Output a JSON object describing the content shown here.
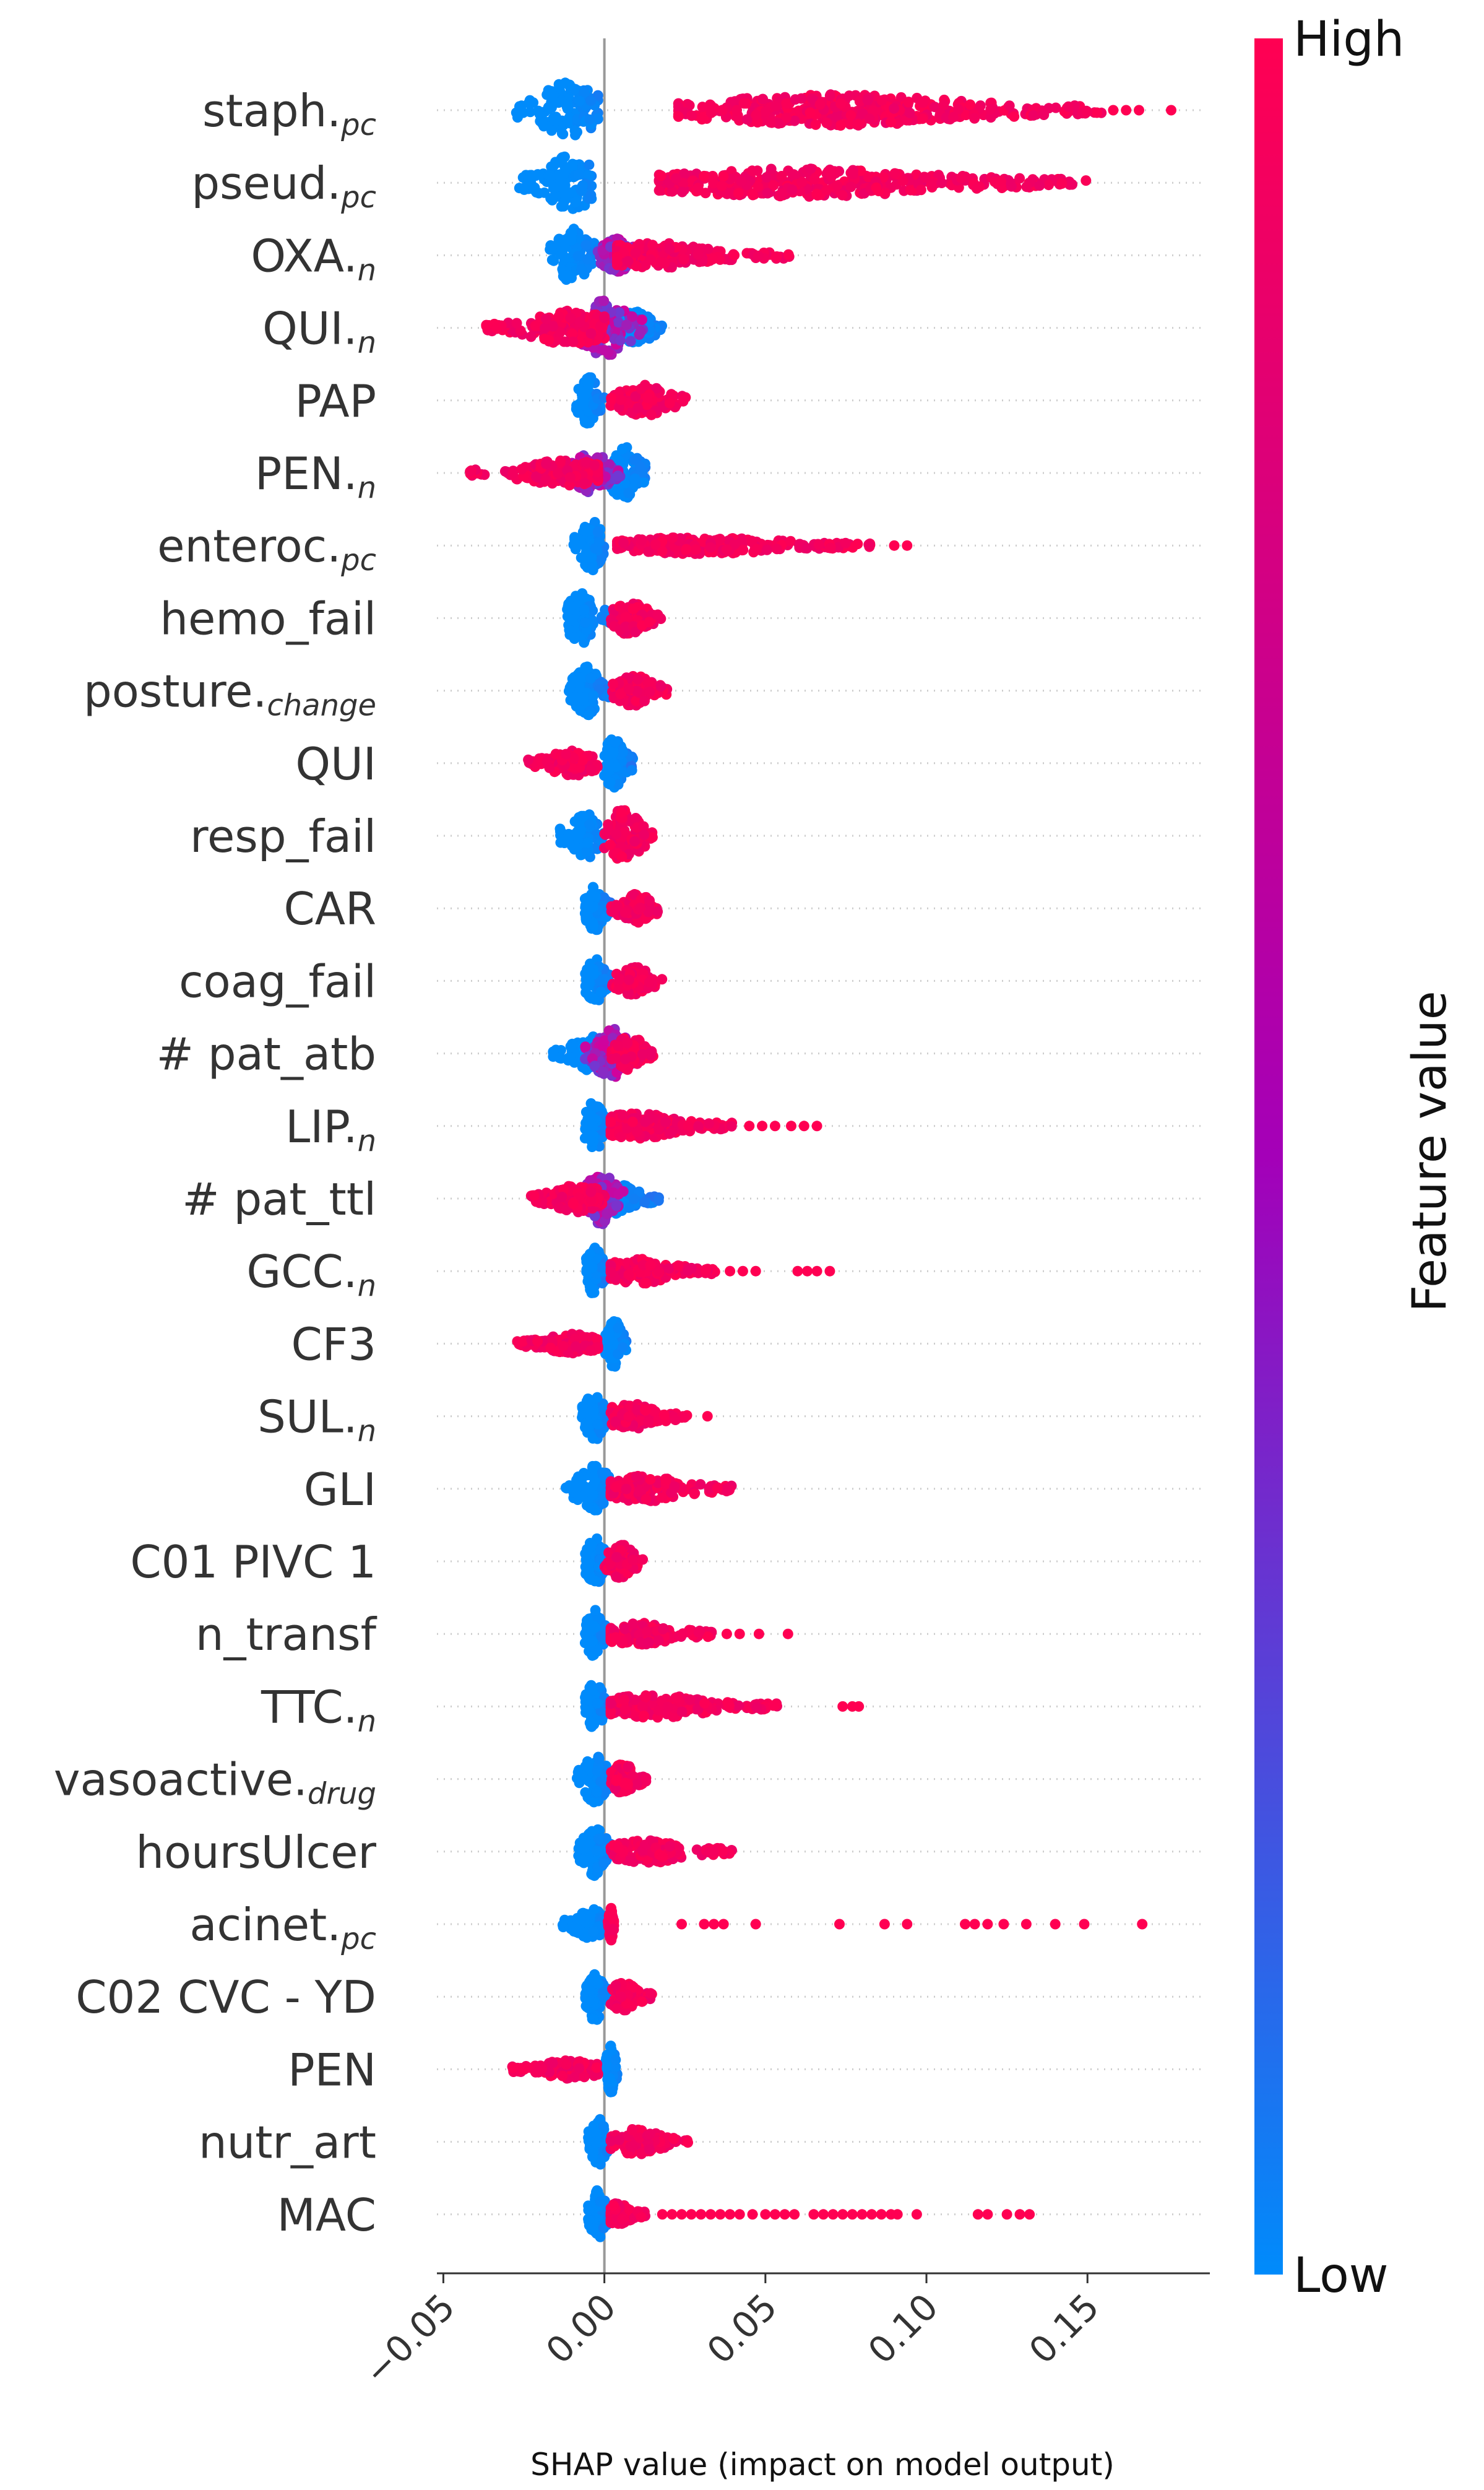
{
  "chart_data": {
    "type": "scatter",
    "subtype": "shap-beeswarm",
    "xlabel": "SHAP value (impact on model output)",
    "xlim": [
      -0.052,
      0.188
    ],
    "xticks": [
      -0.05,
      0.0,
      0.05,
      0.1,
      0.15
    ],
    "xtick_labels": [
      "−0.05",
      "0.00",
      "0.05",
      "0.10",
      "0.15"
    ],
    "colorbar": {
      "title": "Feature value",
      "high_label": "High",
      "low_label": "Low",
      "low_color": "#008bfb",
      "high_color": "#ff0052"
    },
    "features": [
      {
        "name": "staph.",
        "sub": "pc",
        "low": {
          "min": -0.028,
          "max": -0.002,
          "center": -0.011,
          "spread": 1.0
        },
        "high": {
          "min": 0.023,
          "max": 0.155,
          "center": 0.07,
          "spread": 0.55,
          "outliers": [
            0.158,
            0.162,
            0.166,
            0.176
          ]
        }
      },
      {
        "name": "pseud.",
        "sub": "pc",
        "low": {
          "min": -0.027,
          "max": -0.004,
          "center": -0.01,
          "spread": 1.0
        },
        "high": {
          "min": 0.017,
          "max": 0.15,
          "center": 0.06,
          "spread": 0.5
        }
      },
      {
        "name": "OXA.",
        "sub": "n",
        "low": {
          "min": -0.017,
          "max": 0.0,
          "center": -0.01,
          "spread": 0.95
        },
        "mid": {
          "min": -0.002,
          "max": 0.012,
          "center": 0.004,
          "spread": 0.6
        },
        "high": {
          "min": 0.004,
          "max": 0.058,
          "center": 0.015,
          "spread": 0.45
        }
      },
      {
        "name": "QUI.",
        "sub": "n",
        "high": {
          "min": -0.037,
          "max": 0.0,
          "center": -0.01,
          "spread": 0.6
        },
        "mid": {
          "min": -0.01,
          "max": 0.012,
          "center": 0.0,
          "spread": 1.0
        },
        "low": {
          "min": 0.004,
          "max": 0.018,
          "center": 0.01,
          "spread": 0.6
        }
      },
      {
        "name": "PAP",
        "sub": "",
        "low": {
          "min": -0.009,
          "max": 0.0,
          "center": -0.005,
          "spread": 0.85
        },
        "high": {
          "min": 0.002,
          "max": 0.026,
          "center": 0.012,
          "spread": 0.55
        }
      },
      {
        "name": "PEN.",
        "sub": "n",
        "high": {
          "min": -0.042,
          "max": -0.002,
          "center": -0.012,
          "spread": 0.45
        },
        "mid": {
          "min": -0.012,
          "max": 0.006,
          "center": -0.004,
          "spread": 0.7
        },
        "low": {
          "min": 0.0,
          "max": 0.013,
          "center": 0.006,
          "spread": 0.95
        }
      },
      {
        "name": "enteroc.",
        "sub": "pc",
        "low": {
          "min": -0.01,
          "max": 0.0,
          "center": -0.004,
          "spread": 0.9
        },
        "high": {
          "min": 0.004,
          "max": 0.083,
          "center": 0.03,
          "spread": 0.3,
          "outliers": [
            0.09,
            0.094
          ]
        }
      },
      {
        "name": "hemo_fail",
        "sub": "",
        "low": {
          "min": -0.012,
          "max": 0.002,
          "center": -0.007,
          "spread": 0.9
        },
        "high": {
          "min": 0.002,
          "max": 0.018,
          "center": 0.008,
          "spread": 0.6
        }
      },
      {
        "name": "posture.",
        "sub": "change",
        "low": {
          "min": -0.011,
          "max": 0.002,
          "center": -0.006,
          "spread": 0.9
        },
        "high": {
          "min": 0.002,
          "max": 0.02,
          "center": 0.009,
          "spread": 0.55
        }
      },
      {
        "name": "QUI",
        "sub": "",
        "high": {
          "min": -0.024,
          "max": -0.002,
          "center": -0.01,
          "spread": 0.45
        },
        "low": {
          "min": 0.0,
          "max": 0.009,
          "center": 0.003,
          "spread": 0.9
        }
      },
      {
        "name": "resp_fail",
        "sub": "",
        "low": {
          "min": -0.014,
          "max": 0.0,
          "center": -0.006,
          "spread": 0.8
        },
        "high": {
          "min": 0.0,
          "max": 0.015,
          "center": 0.006,
          "spread": 0.95
        }
      },
      {
        "name": "CAR",
        "sub": "",
        "low": {
          "min": -0.006,
          "max": 0.002,
          "center": -0.003,
          "spread": 0.8
        },
        "high": {
          "min": 0.002,
          "max": 0.017,
          "center": 0.01,
          "spread": 0.5
        }
      },
      {
        "name": "coag_fail",
        "sub": "",
        "low": {
          "min": -0.006,
          "max": 0.002,
          "center": -0.003,
          "spread": 0.8
        },
        "high": {
          "min": 0.002,
          "max": 0.018,
          "center": 0.009,
          "spread": 0.5
        }
      },
      {
        "name": "# pat_atb",
        "sub": "",
        "low": {
          "min": -0.016,
          "max": 0.004,
          "center": -0.004,
          "spread": 0.6
        },
        "mid": {
          "min": -0.006,
          "max": 0.01,
          "center": 0.002,
          "spread": 0.9
        },
        "high": {
          "min": 0.002,
          "max": 0.016,
          "center": 0.008,
          "spread": 0.6
        }
      },
      {
        "name": "LIP.",
        "sub": "n",
        "low": {
          "min": -0.006,
          "max": 0.002,
          "center": -0.003,
          "spread": 0.9
        },
        "high": {
          "min": 0.002,
          "max": 0.04,
          "center": 0.01,
          "spread": 0.45,
          "outliers": [
            0.045,
            0.049,
            0.053,
            0.058,
            0.062,
            0.066
          ]
        }
      },
      {
        "name": "# pat_ttl",
        "sub": "",
        "high": {
          "min": -0.023,
          "max": 0.0,
          "center": -0.008,
          "spread": 0.5
        },
        "mid": {
          "min": -0.008,
          "max": 0.006,
          "center": -0.001,
          "spread": 0.9
        },
        "low": {
          "min": 0.0,
          "max": 0.017,
          "center": 0.004,
          "spread": 0.55
        }
      },
      {
        "name": "GCC.",
        "sub": "n",
        "low": {
          "min": -0.006,
          "max": 0.002,
          "center": -0.003,
          "spread": 0.85
        },
        "high": {
          "min": 0.002,
          "max": 0.035,
          "center": 0.01,
          "spread": 0.45,
          "outliers": [
            0.039,
            0.043,
            0.047,
            0.06,
            0.063,
            0.066,
            0.07
          ]
        }
      },
      {
        "name": "CF3",
        "sub": "",
        "high": {
          "min": -0.028,
          "max": -0.002,
          "center": -0.01,
          "spread": 0.35
        },
        "low": {
          "min": 0.0,
          "max": 0.007,
          "center": 0.003,
          "spread": 0.85
        }
      },
      {
        "name": "SUL.",
        "sub": "n",
        "low": {
          "min": -0.007,
          "max": 0.002,
          "center": -0.003,
          "spread": 0.85
        },
        "high": {
          "min": 0.002,
          "max": 0.026,
          "center": 0.008,
          "spread": 0.45,
          "outliers": [
            0.032
          ]
        }
      },
      {
        "name": "GLI",
        "sub": "",
        "low": {
          "min": -0.012,
          "max": 0.002,
          "center": -0.003,
          "spread": 0.85
        },
        "high": {
          "min": 0.002,
          "max": 0.04,
          "center": 0.012,
          "spread": 0.45
        }
      },
      {
        "name": "C01 PIVC 1",
        "sub": "",
        "low": {
          "min": -0.006,
          "max": 0.002,
          "center": -0.003,
          "spread": 0.85
        },
        "high": {
          "min": 0.0,
          "max": 0.012,
          "center": 0.005,
          "spread": 0.6
        }
      },
      {
        "name": "n_transf",
        "sub": "",
        "low": {
          "min": -0.006,
          "max": 0.002,
          "center": -0.003,
          "spread": 0.85
        },
        "high": {
          "min": 0.002,
          "max": 0.034,
          "center": 0.01,
          "spread": 0.4,
          "outliers": [
            0.038,
            0.042,
            0.048,
            0.057
          ]
        }
      },
      {
        "name": "TTC.",
        "sub": "n",
        "low": {
          "min": -0.006,
          "max": 0.002,
          "center": -0.003,
          "spread": 0.85
        },
        "high": {
          "min": 0.002,
          "max": 0.054,
          "center": 0.015,
          "spread": 0.4,
          "outliers": [
            0.074,
            0.077,
            0.079
          ]
        }
      },
      {
        "name": "vasoactive.",
        "sub": "drug",
        "low": {
          "min": -0.009,
          "max": 0.002,
          "center": -0.003,
          "spread": 0.85
        },
        "high": {
          "min": 0.002,
          "max": 0.013,
          "center": 0.006,
          "spread": 0.55
        }
      },
      {
        "name": "hoursUlcer",
        "sub": "",
        "low": {
          "min": -0.009,
          "max": 0.002,
          "center": -0.003,
          "spread": 0.85
        },
        "high": {
          "min": 0.002,
          "max": 0.04,
          "center": 0.014,
          "spread": 0.4
        }
      },
      {
        "name": "acinet.",
        "sub": "pc",
        "low": {
          "min": -0.013,
          "max": 0.001,
          "center": -0.004,
          "spread": 0.55
        },
        "high": {
          "min": 0.001,
          "max": 0.003,
          "center": 0.002,
          "spread": 0.6,
          "outliers": [
            0.024,
            0.031,
            0.034,
            0.037,
            0.047,
            0.073,
            0.087,
            0.094,
            0.112,
            0.115,
            0.119,
            0.124,
            0.131,
            0.14,
            0.149,
            0.167
          ]
        }
      },
      {
        "name": "C02 CVC - YD",
        "sub": "",
        "low": {
          "min": -0.006,
          "max": 0.002,
          "center": -0.003,
          "spread": 0.85
        },
        "high": {
          "min": 0.002,
          "max": 0.015,
          "center": 0.006,
          "spread": 0.5
        }
      },
      {
        "name": "PEN",
        "sub": "",
        "high": {
          "min": -0.029,
          "max": -0.002,
          "center": -0.01,
          "spread": 0.35
        },
        "low": {
          "min": 0.0,
          "max": 0.004,
          "center": 0.002,
          "spread": 0.85
        }
      },
      {
        "name": "nutr_art",
        "sub": "",
        "low": {
          "min": -0.005,
          "max": 0.002,
          "center": -0.002,
          "spread": 0.85
        },
        "high": {
          "min": 0.002,
          "max": 0.026,
          "center": 0.01,
          "spread": 0.45
        }
      },
      {
        "name": "MAC",
        "sub": "",
        "low": {
          "min": -0.005,
          "max": 0.002,
          "center": -0.002,
          "spread": 0.85
        },
        "high": {
          "min": 0.002,
          "max": 0.013,
          "center": 0.004,
          "spread": 0.4,
          "outliers": [
            0.018,
            0.021,
            0.024,
            0.027,
            0.03,
            0.033,
            0.036,
            0.039,
            0.042,
            0.046,
            0.05,
            0.053,
            0.056,
            0.059,
            0.065,
            0.068,
            0.071,
            0.074,
            0.077,
            0.08,
            0.083,
            0.086,
            0.089,
            0.091,
            0.097,
            0.116,
            0.119,
            0.125,
            0.129,
            0.132
          ]
        }
      }
    ]
  }
}
